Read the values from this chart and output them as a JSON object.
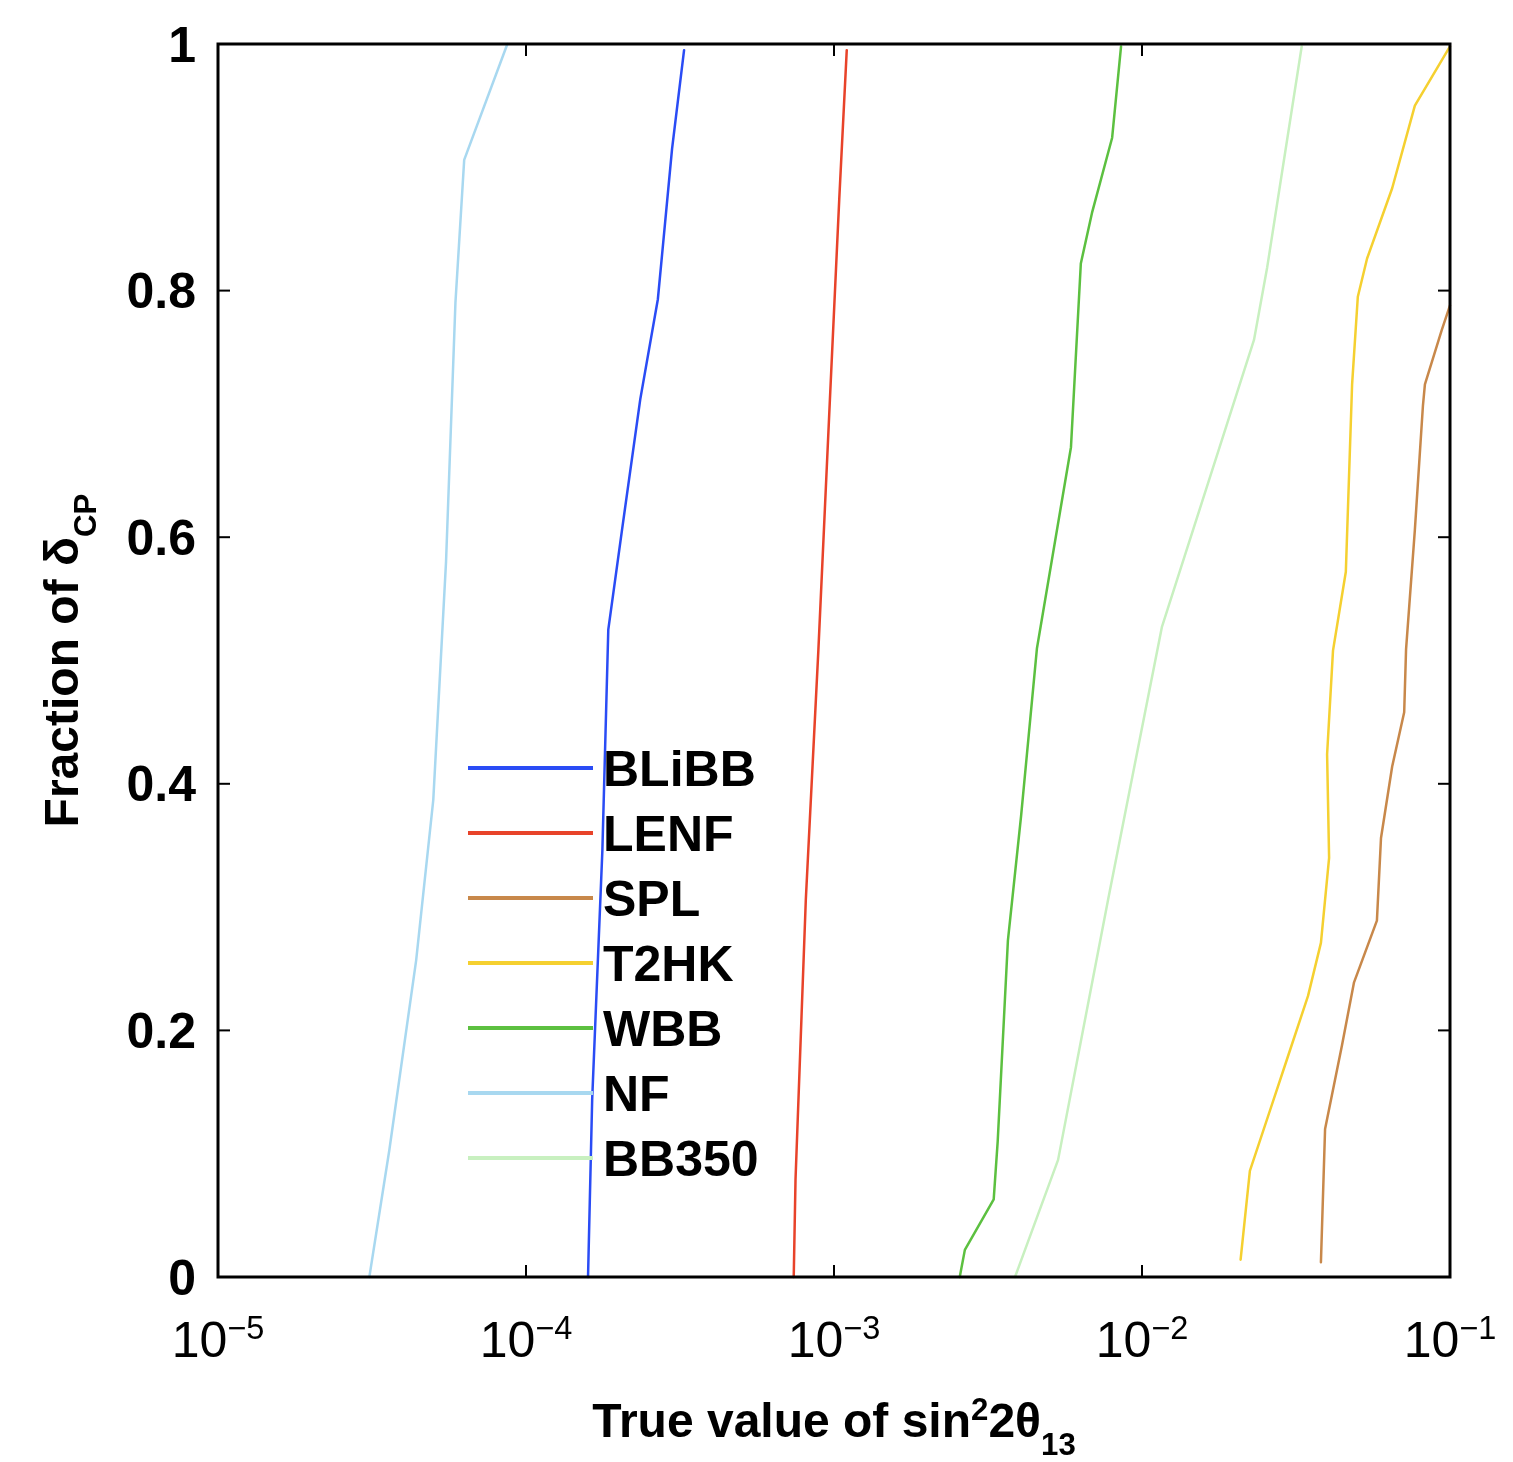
{
  "chart_data": {
    "type": "line",
    "xlabel": "True value of sin$^{2}$2θ$_{13}$",
    "ylabel": "Fraction of δ$_{CP}$",
    "log": "x",
    "xlim": [
      1e-05,
      0.1
    ],
    "ylim": [
      0,
      1
    ],
    "xticks": [
      {
        "value": 1e-05,
        "label": "10$^{−5}$"
      },
      {
        "value": 0.0001,
        "label": "10$^{−4}$"
      },
      {
        "value": 0.001,
        "label": "10$^{−3}$"
      },
      {
        "value": 0.01,
        "label": "10$^{−2}$"
      },
      {
        "value": 0.1,
        "label": "10$^{−1}$"
      }
    ],
    "yticks": [
      0,
      0.2,
      0.4,
      0.6,
      0.8,
      1
    ],
    "grid": false,
    "legend": "bottom left",
    "marker": "none",
    "line_style": "solid",
    "series": [
      {
        "name": "BLiBB",
        "color": "#2a4cf5",
        "x": [
          0.000159,
          0.000164,
          0.000177,
          0.000185,
          0.000205,
          0.000235,
          0.000268,
          0.000298,
          0.000326
        ],
        "values": [
          0,
          0.144,
          0.346,
          0.525,
          0.606,
          0.712,
          0.793,
          0.915,
          0.995
        ]
      },
      {
        "name": "LENF",
        "color": "#e8432a",
        "x": [
          0.00074,
          0.00075,
          0.00081,
          0.00089,
          0.00097,
          0.00104,
          0.0011
        ],
        "values": [
          0,
          0.079,
          0.306,
          0.509,
          0.712,
          0.874,
          0.995
        ]
      },
      {
        "name": "SPL",
        "color": "#c8884a",
        "x": [
          0.0381,
          0.0393,
          0.0446,
          0.0488,
          0.0579,
          0.0597,
          0.0649,
          0.071,
          0.072,
          0.0769,
          0.0817,
          0.0829,
          0.094,
          0.1
        ],
        "values": [
          0.012,
          0.12,
          0.188,
          0.239,
          0.289,
          0.356,
          0.414,
          0.458,
          0.509,
          0.606,
          0.707,
          0.724,
          0.768,
          0.788
        ]
      },
      {
        "name": "T2HK",
        "color": "#f5d030",
        "x": [
          0.0209,
          0.0224,
          0.0296,
          0.0346,
          0.0381,
          0.0405,
          0.0399,
          0.0417,
          0.0459,
          0.0481,
          0.0502,
          0.0538,
          0.0649,
          0.0769,
          0.1
        ],
        "values": [
          0.014,
          0.086,
          0.177,
          0.228,
          0.271,
          0.34,
          0.424,
          0.508,
          0.572,
          0.724,
          0.795,
          0.826,
          0.883,
          0.95,
          0.998
        ]
      },
      {
        "name": "WBB",
        "color": "#5cc040",
        "x": [
          0.00256,
          0.00266,
          0.0033,
          0.0034,
          0.00367,
          0.00405,
          0.00456,
          0.00588,
          0.00633,
          0.00688,
          0.008,
          0.00855
        ],
        "values": [
          0,
          0.022,
          0.063,
          0.11,
          0.273,
          0.374,
          0.51,
          0.673,
          0.822,
          0.863,
          0.924,
          0.998
        ]
      },
      {
        "name": "NF",
        "color": "#a8d8f0",
        "x": [
          3.1e-05,
          3.6e-05,
          4.4e-05,
          5e-05,
          5.5e-05,
          5.9e-05,
          6.3e-05,
          8.7e-05
        ],
        "values": [
          0,
          0.103,
          0.257,
          0.387,
          0.58,
          0.79,
          0.906,
          1
        ]
      },
      {
        "name": "BB350",
        "color": "#c8f0c0",
        "x": [
          0.00387,
          0.00534,
          0.00776,
          0.0116,
          0.0231,
          0.0255,
          0.033
        ],
        "values": [
          0,
          0.095,
          0.306,
          0.527,
          0.76,
          0.819,
          0.998
        ]
      }
    ]
  }
}
